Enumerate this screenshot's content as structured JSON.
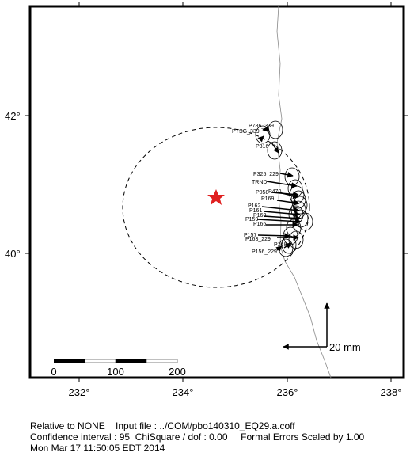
{
  "map": {
    "x_tick_labels": [
      "232°",
      "234°",
      "236°",
      "238°"
    ],
    "y_tick_labels": [
      "42°",
      "40°"
    ],
    "scale_bar_labels": [
      "0",
      "100",
      "200"
    ],
    "reference_vector_label": "20 mm",
    "stations": [
      "P786_339",
      "PTSG_339",
      "P316",
      "P325_229",
      "TRND",
      "P058",
      "P470",
      "P169",
      "P162",
      "P161",
      "P160",
      "P159",
      "P166",
      "P157",
      "P163_229",
      "P168",
      "P156_229"
    ]
  },
  "footer": {
    "lines": [
      "Relative to NONE    Input file : ../COM/pbo140310_EQ29.a.coff",
      "Confidence interval : 95  ChiSquare / dof : 0.00     Formal Errors Scaled by 1.00",
      "Mon Mar 17 11:50:05 EDT 2014"
    ]
  }
}
